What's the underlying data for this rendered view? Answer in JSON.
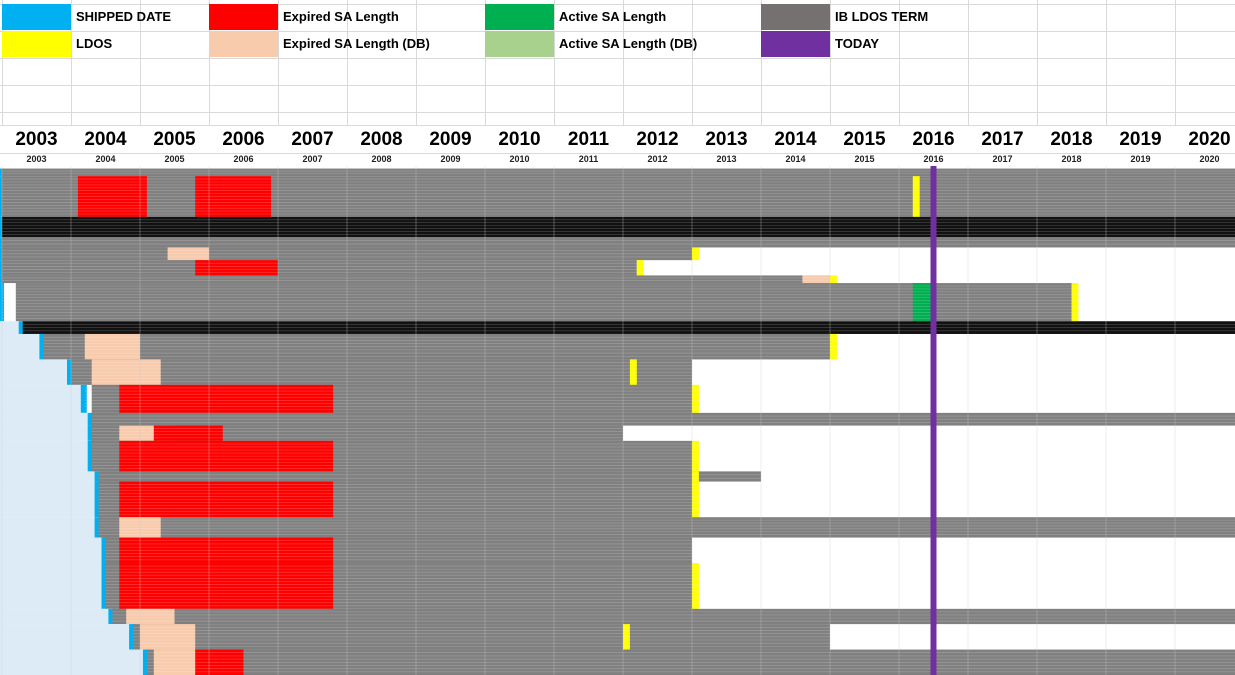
{
  "legend": [
    {
      "label": "SHIPPED DATE",
      "color": "#00B0F0"
    },
    {
      "label": "Expired SA Length",
      "color": "#FF0000"
    },
    {
      "label": "Active SA Length",
      "color": "#00B050"
    },
    {
      "label": "IB LDOS TERM",
      "color": "#767171"
    },
    {
      "label": "LDOS",
      "color": "#FFFF00"
    },
    {
      "label": "Expired SA Length (DB)",
      "color": "#F8CBAD"
    },
    {
      "label": "Active SA Length (DB)",
      "color": "#A9D18E"
    },
    {
      "label": "TODAY",
      "color": "#7030A0"
    }
  ],
  "chart_data": {
    "type": "bar",
    "orientation": "horizontal-stacked-timeline",
    "title": "",
    "xlabel": "",
    "ylabel": "",
    "x_ticks": [
      "2003",
      "2004",
      "2005",
      "2006",
      "2007",
      "2008",
      "2009",
      "2010",
      "2011",
      "2012",
      "2013",
      "2014",
      "2015",
      "2016",
      "2017",
      "2018",
      "2019",
      "2020"
    ],
    "xlim": [
      2003,
      2021
    ],
    "today": 2016.5,
    "grid": true,
    "legend_position": "top",
    "series": [
      {
        "name": "SHIPPED DATE",
        "color": "#00B0F0"
      },
      {
        "name": "Expired SA Length",
        "color": "#FF0000"
      },
      {
        "name": "Expired SA Length (DB)",
        "color": "#F8CBAD"
      },
      {
        "name": "Active SA Length",
        "color": "#00B050"
      },
      {
        "name": "Active SA Length (DB)",
        "color": "#A9D18E"
      },
      {
        "name": "IB LDOS TERM",
        "color": "#767171"
      },
      {
        "name": "LDOS",
        "color": "#FFFF00"
      },
      {
        "name": "TODAY",
        "color": "#7030A0"
      }
    ],
    "colors": {
      "ship_fill": "#DDEBF7",
      "term_gray": "#808080",
      "dense_black": "#111111"
    },
    "rows": [
      {
        "r": [
          0.005,
          0.02
        ],
        "ship": 2003.0,
        "segs": [
          {
            "s": "term",
            "a": 2003.0,
            "b": 2021.0
          }
        ]
      },
      {
        "r": [
          0.02,
          0.1
        ],
        "ship": 2003.0,
        "segs": [
          {
            "s": "term",
            "a": 2003.0,
            "b": 2021.0
          },
          {
            "s": "exp",
            "a": 2004.1,
            "b": 2005.1
          },
          {
            "s": "exp",
            "a": 2005.8,
            "b": 2006.9
          },
          {
            "s": "ldos",
            "a": 2016.2,
            "b": 2016.3
          }
        ]
      },
      {
        "r": [
          0.1,
          0.14
        ],
        "ship": 2003.0,
        "segs": [
          {
            "s": "dense",
            "a": 2003.0,
            "b": 2021.0
          }
        ]
      },
      {
        "r": [
          0.14,
          0.16
        ],
        "ship": 2003.0,
        "segs": [
          {
            "s": "term",
            "a": 2003.0,
            "b": 2021.0
          }
        ]
      },
      {
        "r": [
          0.16,
          0.185
        ],
        "ship": 2003.0,
        "segs": [
          {
            "s": "term",
            "a": 2003.0,
            "b": 2013.0
          },
          {
            "s": "expdb",
            "a": 2005.4,
            "b": 2006.0
          },
          {
            "s": "ldos",
            "a": 2013.0,
            "b": 2013.1
          }
        ]
      },
      {
        "r": [
          0.185,
          0.215
        ],
        "ship": 2003.0,
        "segs": [
          {
            "s": "term",
            "a": 2003.0,
            "b": 2012.2
          },
          {
            "s": "exp",
            "a": 2005.8,
            "b": 2007.0
          },
          {
            "s": "ldos",
            "a": 2012.2,
            "b": 2012.3
          }
        ]
      },
      {
        "r": [
          0.215,
          0.23
        ],
        "ship": 2003.0,
        "segs": [
          {
            "s": "term",
            "a": 2003.0,
            "b": 2015.0
          },
          {
            "s": "expdb",
            "a": 2014.6,
            "b": 2015.0
          },
          {
            "s": "ldos",
            "a": 2015.0,
            "b": 2015.1
          }
        ]
      },
      {
        "r": [
          0.23,
          0.305
        ],
        "ship": 2003.0,
        "segs": [
          {
            "s": "term",
            "a": 2003.2,
            "b": 2018.5
          },
          {
            "s": "act",
            "a": 2016.2,
            "b": 2016.5
          },
          {
            "s": "ldos",
            "a": 2018.5,
            "b": 2018.6
          }
        ]
      },
      {
        "r": [
          0.305,
          0.33
        ],
        "ship": 2003.3,
        "segs": [
          {
            "s": "dense",
            "a": 2003.3,
            "b": 2021.0
          }
        ]
      },
      {
        "r": [
          0.33,
          0.38
        ],
        "ship": 2003.6,
        "segs": [
          {
            "s": "term",
            "a": 2003.6,
            "b": 2015.0
          },
          {
            "s": "expdb",
            "a": 2004.2,
            "b": 2005.0
          },
          {
            "s": "ldos",
            "a": 2015.0,
            "b": 2015.1
          }
        ]
      },
      {
        "r": [
          0.38,
          0.43
        ],
        "ship": 2004.0,
        "segs": [
          {
            "s": "term",
            "a": 2004.0,
            "b": 2013.0
          },
          {
            "s": "expdb",
            "a": 2004.3,
            "b": 2005.3
          },
          {
            "s": "ldos",
            "a": 2012.1,
            "b": 2012.2
          }
        ]
      },
      {
        "r": [
          0.43,
          0.485
        ],
        "ship": 2004.2,
        "segs": [
          {
            "s": "term",
            "a": 2004.3,
            "b": 2013.0
          },
          {
            "s": "exp",
            "a": 2004.7,
            "b": 2007.8
          },
          {
            "s": "ldos",
            "a": 2013.0,
            "b": 2013.1
          }
        ]
      },
      {
        "r": [
          0.485,
          0.51
        ],
        "ship": 2004.3,
        "segs": [
          {
            "s": "term",
            "a": 2004.3,
            "b": 2021.0
          }
        ]
      },
      {
        "r": [
          0.51,
          0.54
        ],
        "ship": 2004.3,
        "segs": [
          {
            "s": "term",
            "a": 2004.3,
            "b": 2012.0
          },
          {
            "s": "expdb",
            "a": 2004.7,
            "b": 2005.5
          },
          {
            "s": "exp",
            "a": 2005.2,
            "b": 2006.2
          }
        ]
      },
      {
        "r": [
          0.54,
          0.6
        ],
        "ship": 2004.3,
        "segs": [
          {
            "s": "term",
            "a": 2004.3,
            "b": 2013.0
          },
          {
            "s": "exp",
            "a": 2004.7,
            "b": 2007.8
          },
          {
            "s": "ldos",
            "a": 2013.0,
            "b": 2013.1
          }
        ]
      },
      {
        "r": [
          0.6,
          0.62
        ],
        "ship": 2004.4,
        "segs": [
          {
            "s": "term",
            "a": 2004.4,
            "b": 2014.0
          },
          {
            "s": "ldos",
            "a": 2013.0,
            "b": 2013.1
          }
        ]
      },
      {
        "r": [
          0.62,
          0.69
        ],
        "ship": 2004.4,
        "segs": [
          {
            "s": "term",
            "a": 2004.4,
            "b": 2013.0
          },
          {
            "s": "exp",
            "a": 2004.7,
            "b": 2007.8
          },
          {
            "s": "ldos",
            "a": 2013.0,
            "b": 2013.1
          }
        ]
      },
      {
        "r": [
          0.69,
          0.73
        ],
        "ship": 2004.4,
        "segs": [
          {
            "s": "term",
            "a": 2004.4,
            "b": 2021.0
          },
          {
            "s": "expdb",
            "a": 2004.7,
            "b": 2005.3
          }
        ]
      },
      {
        "r": [
          0.73,
          0.78
        ],
        "ship": 2004.5,
        "segs": [
          {
            "s": "term",
            "a": 2004.5,
            "b": 2013.0
          },
          {
            "s": "exp",
            "a": 2004.7,
            "b": 2007.8
          }
        ]
      },
      {
        "r": [
          0.78,
          0.87
        ],
        "ship": 2004.5,
        "segs": [
          {
            "s": "term",
            "a": 2004.5,
            "b": 2013.0
          },
          {
            "s": "exp",
            "a": 2004.7,
            "b": 2007.8
          },
          {
            "s": "ldos",
            "a": 2013.0,
            "b": 2013.1
          }
        ]
      },
      {
        "r": [
          0.87,
          0.9
        ],
        "ship": 2004.6,
        "segs": [
          {
            "s": "term",
            "a": 2004.6,
            "b": 2021.0
          },
          {
            "s": "expdb",
            "a": 2004.8,
            "b": 2005.5
          }
        ]
      },
      {
        "r": [
          0.9,
          0.95
        ],
        "ship": 2004.9,
        "segs": [
          {
            "s": "term",
            "a": 2004.9,
            "b": 2015.0
          },
          {
            "s": "expdb",
            "a": 2005.0,
            "b": 2005.8
          },
          {
            "s": "ldos",
            "a": 2012.0,
            "b": 2012.1
          }
        ]
      },
      {
        "r": [
          0.95,
          1.0
        ],
        "ship": 2005.1,
        "segs": [
          {
            "s": "term",
            "a": 2005.1,
            "b": 2021.0
          },
          {
            "s": "expdb",
            "a": 2005.2,
            "b": 2006.0
          },
          {
            "s": "exp",
            "a": 2005.8,
            "b": 2006.5
          }
        ]
      }
    ]
  }
}
